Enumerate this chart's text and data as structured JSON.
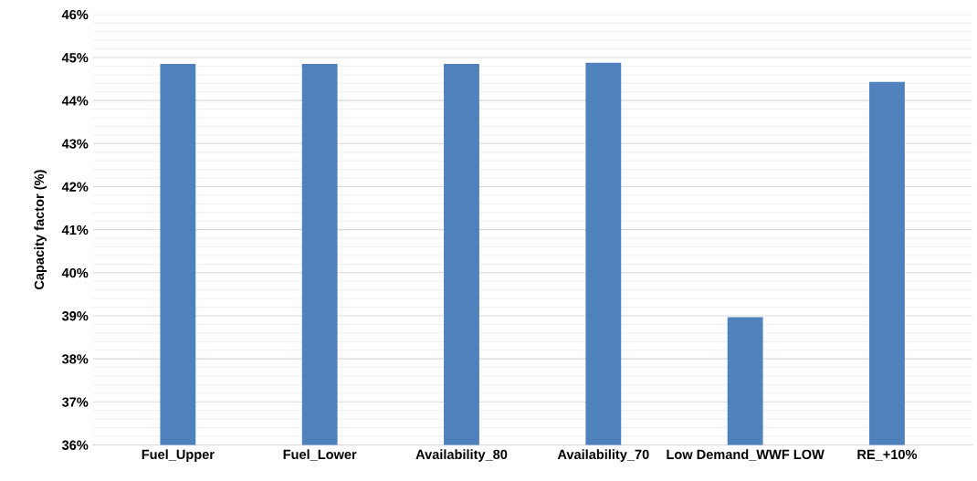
{
  "chart_data": {
    "type": "bar",
    "ylabel": "Capacity factor (%)",
    "categories": [
      "Fuel_Upper",
      "Fuel_Lower",
      "Availability_80",
      "Availability_70",
      "Low Demand_WWF LOW",
      "RE_+10%"
    ],
    "values": [
      44.85,
      44.85,
      44.85,
      44.88,
      38.97,
      44.43
    ],
    "color": "#4f81bd",
    "ylim": [
      36,
      46
    ],
    "yticks": [
      {
        "value": 36,
        "label": "36%"
      },
      {
        "value": 36.2,
        "label": null
      },
      {
        "value": 36.4,
        "label": null
      },
      {
        "value": 36.6,
        "label": null
      },
      {
        "value": 36.8,
        "label": null
      },
      {
        "value": 37,
        "label": "37%"
      },
      {
        "value": 37.2,
        "label": null
      },
      {
        "value": 37.4,
        "label": null
      },
      {
        "value": 37.6,
        "label": null
      },
      {
        "value": 37.8,
        "label": null
      },
      {
        "value": 38,
        "label": "38%"
      },
      {
        "value": 38.2,
        "label": null
      },
      {
        "value": 38.4,
        "label": null
      },
      {
        "value": 38.6,
        "label": null
      },
      {
        "value": 38.8,
        "label": null
      },
      {
        "value": 39,
        "label": "39%"
      },
      {
        "value": 39.2,
        "label": null
      },
      {
        "value": 39.4,
        "label": null
      },
      {
        "value": 39.6,
        "label": null
      },
      {
        "value": 39.8,
        "label": null
      },
      {
        "value": 40,
        "label": "40%"
      },
      {
        "value": 40.2,
        "label": null
      },
      {
        "value": 40.4,
        "label": null
      },
      {
        "value": 40.6,
        "label": null
      },
      {
        "value": 40.8,
        "label": null
      },
      {
        "value": 41,
        "label": "41%"
      },
      {
        "value": 41.2,
        "label": null
      },
      {
        "value": 41.4,
        "label": null
      },
      {
        "value": 41.6,
        "label": null
      },
      {
        "value": 41.8,
        "label": null
      },
      {
        "value": 42,
        "label": "42%"
      },
      {
        "value": 42.2,
        "label": null
      },
      {
        "value": 42.4,
        "label": null
      },
      {
        "value": 42.6,
        "label": null
      },
      {
        "value": 42.8,
        "label": null
      },
      {
        "value": 43,
        "label": "43%"
      },
      {
        "value": 43.2,
        "label": null
      },
      {
        "value": 43.4,
        "label": null
      },
      {
        "value": 43.6,
        "label": null
      },
      {
        "value": 43.8,
        "label": null
      },
      {
        "value": 44,
        "label": "44%"
      },
      {
        "value": 44.2,
        "label": null
      },
      {
        "value": 44.4,
        "label": null
      },
      {
        "value": 44.6,
        "label": null
      },
      {
        "value": 44.8,
        "label": null
      },
      {
        "value": 45,
        "label": "45%"
      },
      {
        "value": 45.2,
        "label": null
      },
      {
        "value": 45.4,
        "label": null
      },
      {
        "value": 45.6,
        "label": null
      },
      {
        "value": 45.8,
        "label": null
      },
      {
        "value": 46,
        "label": "46%"
      }
    ],
    "grid": "y"
  }
}
